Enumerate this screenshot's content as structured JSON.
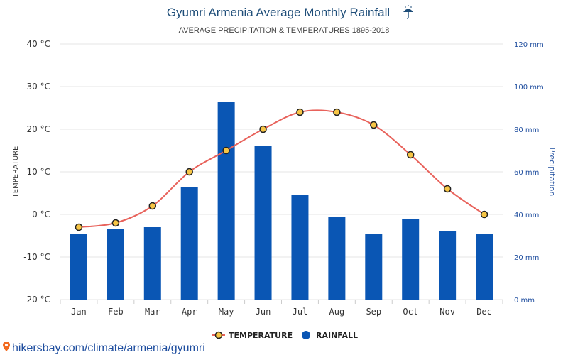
{
  "chart_data": {
    "type": "bar",
    "title": "Gyumri Armenia Average Monthly Rainfall",
    "title_icon": "umbrella-icon",
    "subtitle": "AVERAGE PRECIPITATION & TEMPERATURES 1895-2018",
    "categories": [
      "Jan",
      "Feb",
      "Mar",
      "Apr",
      "May",
      "Jun",
      "Jul",
      "Aug",
      "Sep",
      "Oct",
      "Nov",
      "Dec"
    ],
    "series": [
      {
        "name": "RAINFALL",
        "type": "bar",
        "axis": "right",
        "unit": "mm",
        "color": "#0a56b4",
        "values": [
          31,
          33,
          34,
          53,
          93,
          72,
          49,
          39,
          31,
          38,
          32,
          31
        ]
      },
      {
        "name": "TEMPERATURE",
        "type": "line",
        "axis": "left",
        "unit": "°C",
        "color": "#e8625b",
        "marker_fill": "#f7c545",
        "values": [
          -3,
          -2,
          2,
          10,
          15,
          20,
          24,
          24,
          21,
          14,
          6,
          0
        ]
      }
    ],
    "ylabel_left": "TEMPERATURE",
    "ylim_left": [
      -20,
      40
    ],
    "yticks_left": [
      "40 °C",
      "30 °C",
      "20 °C",
      "10 °C",
      "0 °C",
      "-10 °C",
      "-20 °C"
    ],
    "ylabel_right": "Precipitation",
    "ylim_right": [
      0,
      120
    ],
    "yticks_right": [
      "120 mm",
      "100 mm",
      "80 mm",
      "60 mm",
      "40 mm",
      "20 mm",
      "0 mm"
    ],
    "grid": true,
    "legend_position": "bottom-center",
    "legend": [
      "TEMPERATURE",
      "RAINFALL"
    ]
  },
  "source_text": "hikersbay.com/climate/armenia/gyumri",
  "source_icon": "location-pin-icon"
}
